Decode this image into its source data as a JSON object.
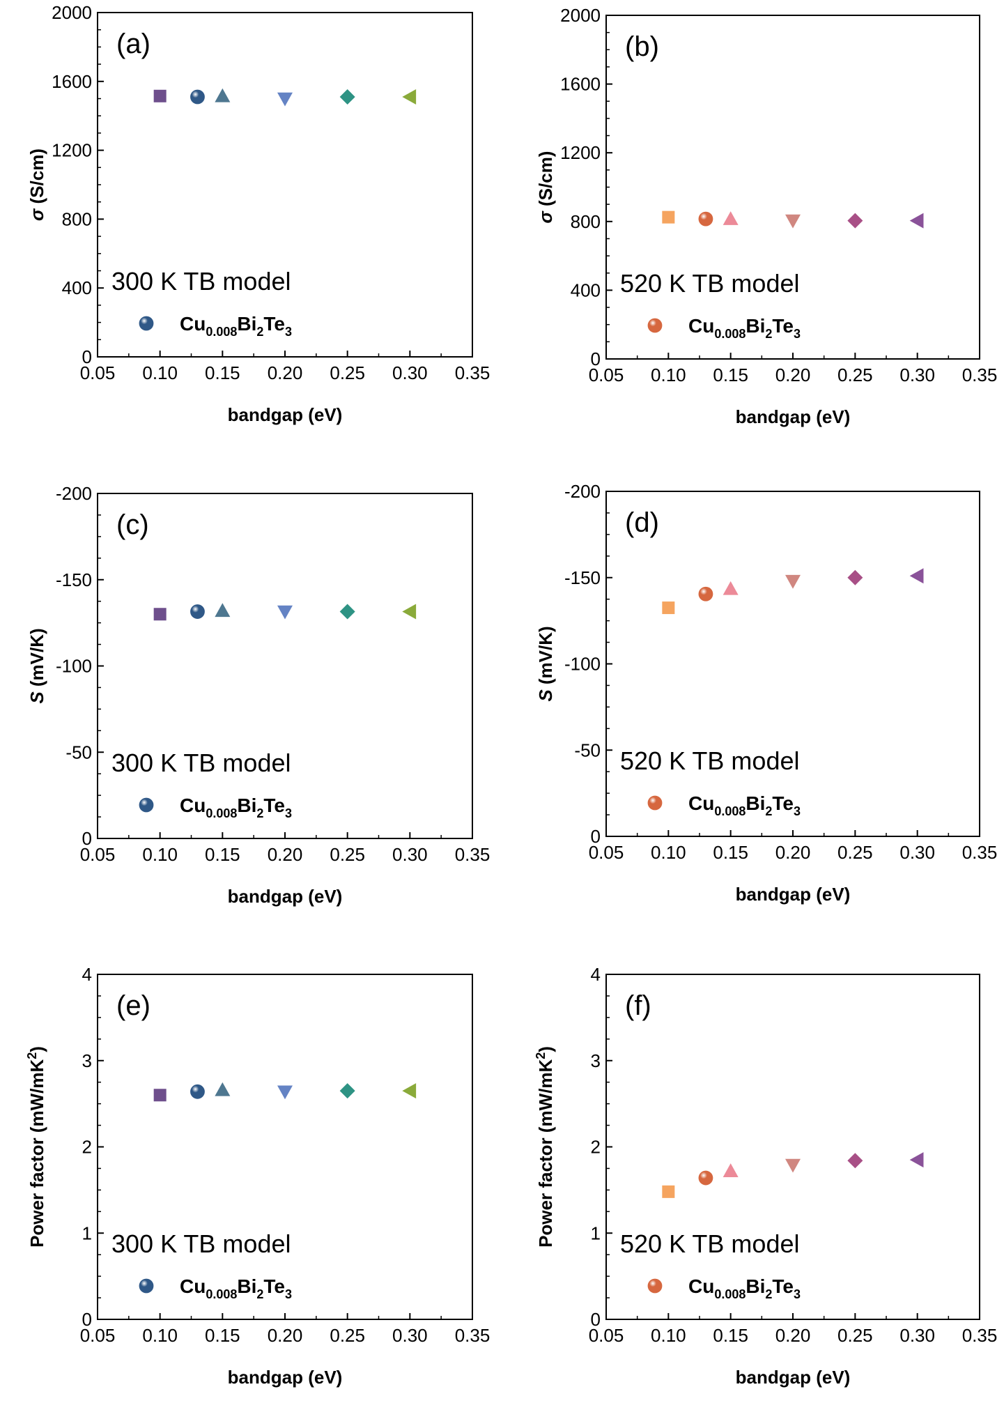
{
  "chart_data": [
    {
      "type": "scatter",
      "panel_label": "(a)",
      "model_label": "300 K TB model",
      "ylabel_sym": "σ",
      "ylabel_rest": " (S/cm)",
      "xlabel": "bandgap (eV)",
      "xlim": [
        0.05,
        0.35
      ],
      "ylim": [
        0,
        2000
      ],
      "xticks": [
        "0.05",
        "0.10",
        "0.15",
        "0.20",
        "0.25",
        "0.30",
        "0.35"
      ],
      "yticks": [
        "0",
        "400",
        "800",
        "1200",
        "1600",
        "2000"
      ],
      "legend": {
        "base": "Cu",
        "sub1": "0.008",
        "mid": "Bi",
        "sub2": "2",
        "end": "Te",
        "sub3": "3"
      },
      "points": [
        {
          "x": 0.1,
          "y": 1515,
          "marker": "square",
          "color": "#6E4F8C"
        },
        {
          "x": 0.13,
          "y": 1510,
          "marker": "sphere",
          "color": "#2F5887"
        },
        {
          "x": 0.15,
          "y": 1515,
          "marker": "triangle-up",
          "color": "#4E7790"
        },
        {
          "x": 0.2,
          "y": 1500,
          "marker": "triangle-down",
          "color": "#6483C4"
        },
        {
          "x": 0.25,
          "y": 1510,
          "marker": "diamond",
          "color": "#2E9384"
        },
        {
          "x": 0.3,
          "y": 1510,
          "marker": "triangle-left",
          "color": "#8AAA3A"
        }
      ]
    },
    {
      "type": "scatter",
      "panel_label": "(b)",
      "model_label": "520 K TB model",
      "ylabel_sym": "σ",
      "ylabel_rest": " (S/cm)",
      "xlabel": "bandgap (eV)",
      "xlim": [
        0.05,
        0.35
      ],
      "ylim": [
        0,
        2000
      ],
      "xticks": [
        "0.05",
        "0.10",
        "0.15",
        "0.20",
        "0.25",
        "0.30",
        "0.35"
      ],
      "yticks": [
        "0",
        "400",
        "800",
        "1200",
        "1600",
        "2000"
      ],
      "legend": {
        "base": "Cu",
        "sub1": "0.008",
        "mid": "Bi",
        "sub2": "2",
        "end": "Te",
        "sub3": "3"
      },
      "points": [
        {
          "x": 0.1,
          "y": 825,
          "marker": "square",
          "color": "#F5A45F"
        },
        {
          "x": 0.13,
          "y": 815,
          "marker": "sphere",
          "color": "#D6673F"
        },
        {
          "x": 0.15,
          "y": 815,
          "marker": "triangle-up",
          "color": "#EC8A98"
        },
        {
          "x": 0.2,
          "y": 805,
          "marker": "triangle-down",
          "color": "#D08780"
        },
        {
          "x": 0.25,
          "y": 805,
          "marker": "diamond",
          "color": "#A84F86"
        },
        {
          "x": 0.3,
          "y": 805,
          "marker": "triangle-left",
          "color": "#8A5299"
        }
      ]
    },
    {
      "type": "scatter",
      "panel_label": "(c)",
      "model_label": "300 K TB model",
      "ylabel_sym": "S",
      "ylabel_rest": " (mV/K)",
      "xlabel": "bandgap (eV)",
      "xlim": [
        0.05,
        0.35
      ],
      "ylim": [
        0,
        -200
      ],
      "xticks": [
        "0.05",
        "0.10",
        "0.15",
        "0.20",
        "0.25",
        "0.30",
        "0.35"
      ],
      "yticks": [
        "0",
        "-50",
        "-100",
        "-150",
        "-200"
      ],
      "legend": {
        "base": "Cu",
        "sub1": "0.008",
        "mid": "Bi",
        "sub2": "2",
        "end": "Te",
        "sub3": "3"
      },
      "points": [
        {
          "x": 0.1,
          "y": -130,
          "marker": "square",
          "color": "#6E4F8C"
        },
        {
          "x": 0.13,
          "y": -131.5,
          "marker": "sphere",
          "color": "#2F5887"
        },
        {
          "x": 0.15,
          "y": -132,
          "marker": "triangle-up",
          "color": "#4E7790"
        },
        {
          "x": 0.2,
          "y": -131.5,
          "marker": "triangle-down",
          "color": "#6483C4"
        },
        {
          "x": 0.25,
          "y": -131.5,
          "marker": "diamond",
          "color": "#2E9384"
        },
        {
          "x": 0.3,
          "y": -131.5,
          "marker": "triangle-left",
          "color": "#8AAA3A"
        }
      ]
    },
    {
      "type": "scatter",
      "panel_label": "(d)",
      "model_label": "520 K TB model",
      "ylabel_sym": "S",
      "ylabel_rest": " (mV/K)",
      "xlabel": "bandgap (eV)",
      "xlim": [
        0.05,
        0.35
      ],
      "ylim": [
        0,
        -200
      ],
      "xticks": [
        "0.05",
        "0.10",
        "0.15",
        "0.20",
        "0.25",
        "0.30",
        "0.35"
      ],
      "yticks": [
        "0",
        "-50",
        "-100",
        "-150",
        "-200"
      ],
      "legend": {
        "base": "Cu",
        "sub1": "0.008",
        "mid": "Bi",
        "sub2": "2",
        "end": "Te",
        "sub3": "3"
      },
      "points": [
        {
          "x": 0.1,
          "y": -132.5,
          "marker": "square",
          "color": "#F5A45F"
        },
        {
          "x": 0.13,
          "y": -140.5,
          "marker": "sphere",
          "color": "#D6673F"
        },
        {
          "x": 0.15,
          "y": -143.5,
          "marker": "triangle-up",
          "color": "#EC8A98"
        },
        {
          "x": 0.2,
          "y": -148,
          "marker": "triangle-down",
          "color": "#D08780"
        },
        {
          "x": 0.25,
          "y": -150,
          "marker": "diamond",
          "color": "#A84F86"
        },
        {
          "x": 0.3,
          "y": -151,
          "marker": "triangle-left",
          "color": "#8A5299"
        }
      ]
    },
    {
      "type": "scatter",
      "panel_label": "(e)",
      "model_label": "300 K TB model",
      "ylabel_sym": "",
      "ylabel_rest": "Power factor (mW/mK",
      "ylabel_sup": "2",
      "ylabel_close": ")",
      "xlabel": "bandgap (eV)",
      "xlim": [
        0.05,
        0.35
      ],
      "ylim": [
        0,
        4
      ],
      "xticks": [
        "0.05",
        "0.10",
        "0.15",
        "0.20",
        "0.25",
        "0.30",
        "0.35"
      ],
      "yticks": [
        "0",
        "1",
        "2",
        "3",
        "4"
      ],
      "legend": {
        "base": "Cu",
        "sub1": "0.008",
        "mid": "Bi",
        "sub2": "2",
        "end": "Te",
        "sub3": "3"
      },
      "points": [
        {
          "x": 0.1,
          "y": 2.6,
          "marker": "square",
          "color": "#6E4F8C"
        },
        {
          "x": 0.13,
          "y": 2.64,
          "marker": "sphere",
          "color": "#2F5887"
        },
        {
          "x": 0.15,
          "y": 2.66,
          "marker": "triangle-up",
          "color": "#4E7790"
        },
        {
          "x": 0.2,
          "y": 2.64,
          "marker": "triangle-down",
          "color": "#6483C4"
        },
        {
          "x": 0.25,
          "y": 2.65,
          "marker": "diamond",
          "color": "#2E9384"
        },
        {
          "x": 0.3,
          "y": 2.65,
          "marker": "triangle-left",
          "color": "#8AAA3A"
        }
      ]
    },
    {
      "type": "scatter",
      "panel_label": "(f)",
      "model_label": "520 K TB model",
      "ylabel_sym": "",
      "ylabel_rest": "Power factor (mW/mK",
      "ylabel_sup": "2",
      "ylabel_close": ")",
      "xlabel": "bandgap (eV)",
      "xlim": [
        0.05,
        0.35
      ],
      "ylim": [
        0,
        4
      ],
      "xticks": [
        "0.05",
        "0.10",
        "0.15",
        "0.20",
        "0.25",
        "0.30",
        "0.35"
      ],
      "yticks": [
        "0",
        "1",
        "2",
        "3",
        "4"
      ],
      "legend": {
        "base": "Cu",
        "sub1": "0.008",
        "mid": "Bi",
        "sub2": "2",
        "end": "Te",
        "sub3": "3"
      },
      "points": [
        {
          "x": 0.1,
          "y": 1.48,
          "marker": "square",
          "color": "#F5A45F"
        },
        {
          "x": 0.13,
          "y": 1.64,
          "marker": "sphere",
          "color": "#D6673F"
        },
        {
          "x": 0.15,
          "y": 1.72,
          "marker": "triangle-up",
          "color": "#EC8A98"
        },
        {
          "x": 0.2,
          "y": 1.79,
          "marker": "triangle-down",
          "color": "#D08780"
        },
        {
          "x": 0.25,
          "y": 1.84,
          "marker": "diamond",
          "color": "#A84F86"
        },
        {
          "x": 0.3,
          "y": 1.85,
          "marker": "triangle-left",
          "color": "#8A5299"
        }
      ]
    }
  ]
}
